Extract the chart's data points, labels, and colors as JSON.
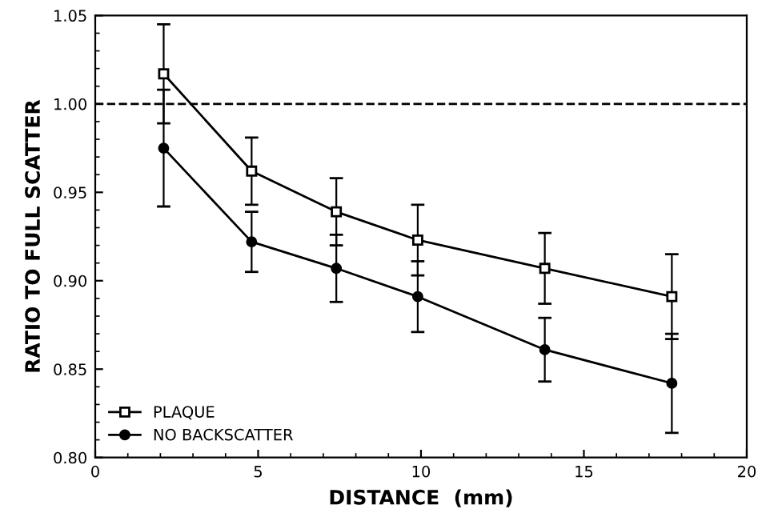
{
  "chart_data": {
    "type": "line",
    "xlabel": "DISTANCE  (mm)",
    "ylabel": "RATIO TO FULL SCATTER",
    "xlim": [
      0,
      20
    ],
    "xticks": [
      0,
      5,
      10,
      15,
      20
    ],
    "ylim": [
      0.8,
      1.05
    ],
    "yticks": [
      {
        "value": 0.8,
        "label": "0.80"
      },
      {
        "value": 0.85,
        "label": "0.85"
      },
      {
        "value": 0.9,
        "label": "0.90"
      },
      {
        "value": 0.95,
        "label": "0.95"
      },
      {
        "value": 1.0,
        "label": "1.00"
      },
      {
        "value": 1.05,
        "label": "1.05"
      }
    ],
    "x": [
      2.1,
      4.8,
      7.4,
      9.9,
      13.8,
      17.7
    ],
    "series": [
      {
        "name": "PLAQUE",
        "color": "#000000",
        "marker": "square",
        "values": [
          1.017,
          0.962,
          0.939,
          0.923,
          0.907,
          0.891
        ],
        "errors": [
          0.028,
          0.019,
          0.019,
          0.02,
          0.02,
          0.024
        ]
      },
      {
        "name": "NO BACKSCATTER",
        "color": "#000000",
        "marker": "circle",
        "values": [
          0.975,
          0.922,
          0.907,
          0.891,
          0.861,
          0.842
        ],
        "errors": [
          0.033,
          0.017,
          0.019,
          0.02,
          0.018,
          0.028
        ]
      }
    ],
    "ref_lines": [
      {
        "axis": "y",
        "value": 1.0,
        "line_style": "dashed",
        "color": "#000000"
      }
    ],
    "legend": "bottom left",
    "grid": false
  }
}
